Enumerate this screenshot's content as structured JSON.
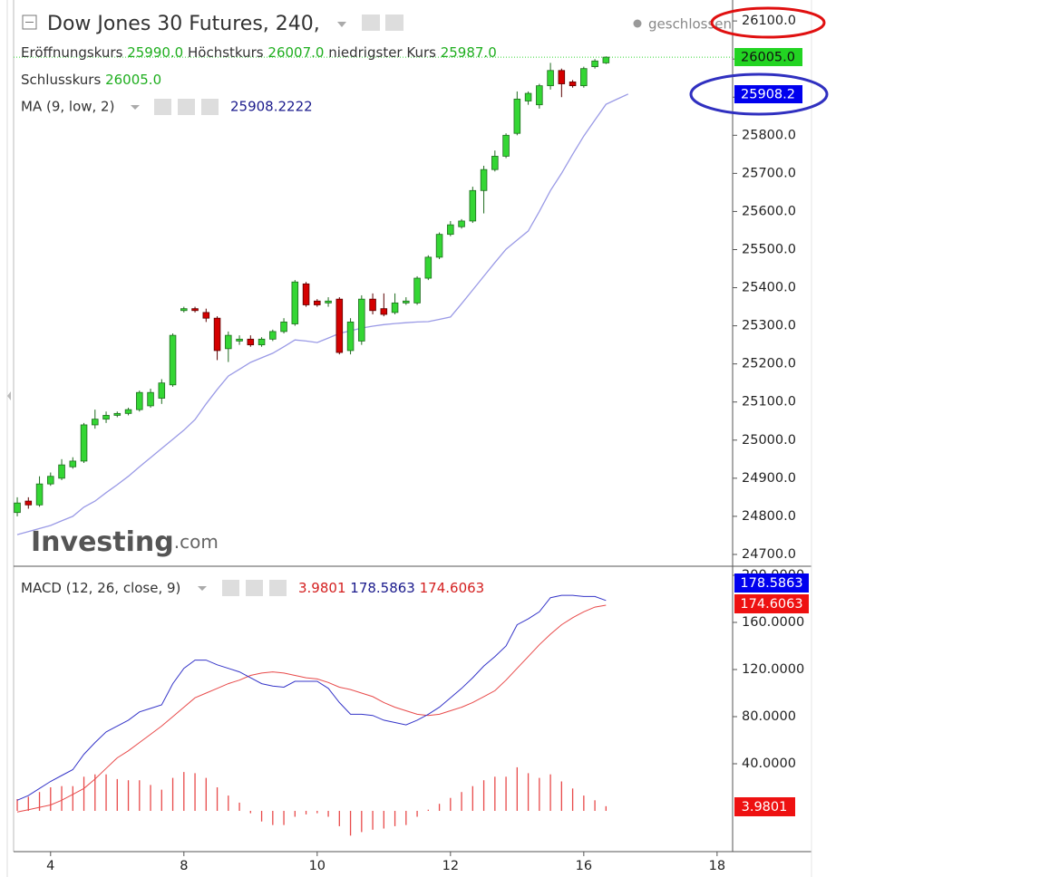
{
  "chart_data": [
    {
      "type": "candlestick",
      "title": "Dow Jones 30 Futures, 240,",
      "status": "geschlossen",
      "info": {
        "open_label": "Eröffnungskurs",
        "open": "25990.0",
        "high_label": "Höchstkurs",
        "high": "26007.0",
        "low_label": "niedrigster Kurs",
        "low": "25987.0",
        "close_label": "Schlusskurs",
        "close": "26005.0"
      },
      "open": [
        24810,
        24840,
        24830,
        24885,
        24900,
        24930,
        24945,
        25040,
        25055,
        25065,
        25070,
        25080,
        25090,
        25110,
        25145,
        25340,
        25345,
        25335,
        25320,
        25240,
        25260,
        25265,
        25250,
        25265,
        25285,
        25305,
        25410,
        25365,
        25360,
        25370,
        25235,
        25260,
        25370,
        25345,
        25335,
        25360,
        25360,
        25425,
        25480,
        25540,
        25560,
        25575,
        25655,
        25710,
        25745,
        25805,
        25890,
        25880,
        25930,
        25970,
        25940,
        25930,
        25980,
        25990
      ],
      "high": [
        24850,
        24850,
        24905,
        24915,
        24950,
        24955,
        25045,
        25080,
        25075,
        25075,
        25085,
        25130,
        25135,
        25160,
        25280,
        25350,
        25350,
        25345,
        25325,
        25285,
        25275,
        25275,
        25270,
        25290,
        25320,
        25420,
        25415,
        25370,
        25375,
        25375,
        25320,
        25380,
        25385,
        25385,
        25385,
        25375,
        25430,
        25485,
        25545,
        25575,
        25580,
        25665,
        25720,
        25760,
        25805,
        25915,
        25915,
        25935,
        25990,
        25975,
        25945,
        25980,
        26000,
        26007
      ],
      "low": [
        24800,
        24820,
        24825,
        24880,
        24895,
        24925,
        24940,
        25030,
        25045,
        25060,
        25065,
        25075,
        25085,
        25095,
        25140,
        25335,
        25335,
        25310,
        25210,
        25205,
        25250,
        25245,
        25245,
        25260,
        25280,
        25300,
        25350,
        25350,
        25350,
        25225,
        25225,
        25250,
        25330,
        25325,
        25330,
        25355,
        25355,
        25420,
        25475,
        25535,
        25555,
        25570,
        25595,
        25705,
        25740,
        25800,
        25880,
        25870,
        25920,
        25900,
        25925,
        25925,
        25975,
        25987
      ],
      "close": [
        24835,
        24830,
        24885,
        24905,
        24935,
        24945,
        25040,
        25055,
        25065,
        25070,
        25080,
        25125,
        25125,
        25150,
        25275,
        25345,
        25340,
        25320,
        25235,
        25275,
        25265,
        25250,
        25265,
        25285,
        25310,
        25415,
        25355,
        25355,
        25365,
        25230,
        25310,
        25370,
        25340,
        25330,
        25360,
        25365,
        25425,
        25480,
        25540,
        25565,
        25575,
        25655,
        25710,
        25745,
        25800,
        25895,
        25910,
        25930,
        25970,
        25935,
        25930,
        25975,
        25995,
        26005
      ],
      "up_color": "#34d634",
      "down_color": "#d40000",
      "up_edge": "#1e6b1e",
      "down_edge": "#5a0000",
      "ma": {
        "name": "MA (9, low, 2)",
        "value_label": "25908.2222",
        "color": "#9a9ae6",
        "values": [
          24752,
          24760,
          24768,
          24776,
          24788,
          24800,
          24824,
          24840,
          24862,
          24883,
          24905,
          24930,
          24954,
          24978,
          25002,
          25026,
          25054,
          25095,
          25133,
          25168,
          25186,
          25204,
          25216,
          25228,
          25245,
          25263,
          25260,
          25256,
          25268,
          25280,
          25287,
          25294,
          25299,
          25303,
          25306,
          25308,
          25310,
          25311,
          25317,
          25323,
          25358,
          25394,
          25430,
          25466,
          25501,
          25525,
          25549,
          25600,
          25655,
          25700,
          25750,
          25798,
          25840,
          25881,
          25895,
          25908.2222
        ]
      },
      "axis_badges": [
        "26005.0",
        "25908.2"
      ],
      "watermark": {
        "brand": "Investing",
        "suffix": ".com"
      },
      "xlim": [
        -0.33,
        64.4
      ],
      "ylim": [
        24669,
        26155
      ],
      "yticks": [
        {
          "value": 24700,
          "label": "24700.0"
        },
        {
          "value": 24800,
          "label": "24800.0"
        },
        {
          "value": 24900,
          "label": "24900.0"
        },
        {
          "value": 25000,
          "label": "25000.0"
        },
        {
          "value": 25100,
          "label": "25100.0"
        },
        {
          "value": 25200,
          "label": "25200.0"
        },
        {
          "value": 25300,
          "label": "25300.0"
        },
        {
          "value": 25400,
          "label": "25400.0"
        },
        {
          "value": 25500,
          "label": "25500.0"
        },
        {
          "value": 25600,
          "label": "25600.0"
        },
        {
          "value": 25700,
          "label": "25700.0"
        },
        {
          "value": 25800,
          "label": "25800.0"
        },
        {
          "value": 25900,
          "label": "25900.0"
        },
        {
          "value": 26000,
          "label": "26000.0"
        },
        {
          "value": 26100,
          "label": "26100.0"
        }
      ]
    },
    {
      "type": "macd",
      "title": "MACD (12, 26, close, 9)",
      "legend_values": [
        "3.9801",
        "178.5863",
        "174.6063"
      ],
      "axis_badges": [
        "178.5863",
        "174.6063",
        "3.9801"
      ],
      "histogram": {
        "color": "#e84a4a",
        "values": [
          10,
          12,
          16,
          20,
          21,
          21,
          29,
          31,
          31,
          27,
          26,
          26,
          22,
          18,
          28,
          33,
          32,
          28,
          20,
          13,
          7,
          -2,
          -9,
          -12,
          -12,
          -5,
          -3,
          -2,
          -5,
          -13,
          -21,
          -18,
          -16,
          -15,
          -13,
          -12,
          -5,
          1,
          6,
          11,
          16,
          21,
          26,
          29,
          29,
          37,
          32,
          28,
          31,
          25,
          19,
          13,
          9,
          3.9801
        ]
      },
      "macd": {
        "color": "#3434c8",
        "values": [
          9,
          13,
          19,
          25,
          30,
          35,
          48,
          58,
          67,
          72,
          77,
          84,
          87,
          90,
          108,
          121,
          128,
          128,
          124,
          121,
          118,
          113,
          108,
          106,
          105,
          110,
          110,
          110,
          104,
          92,
          82,
          82,
          81,
          77,
          75,
          73,
          77,
          82,
          88,
          96,
          104,
          113,
          123,
          131,
          140,
          158,
          163,
          169,
          181,
          183,
          183,
          182,
          182,
          178.5863
        ]
      },
      "signal": {
        "color": "#e84a4a",
        "values": [
          -1,
          1,
          3,
          5,
          9,
          14,
          19,
          27,
          36,
          45,
          51,
          58,
          65,
          72,
          80,
          88,
          96,
          100,
          104,
          108,
          111,
          115,
          117,
          118,
          117,
          115,
          113,
          112,
          109,
          105,
          103,
          100,
          97,
          92,
          88,
          85,
          82,
          81,
          82,
          85,
          88,
          92,
          97,
          102,
          111,
          121,
          131,
          141,
          150,
          158,
          164,
          169,
          173,
          174.6063
        ]
      },
      "xlim": [
        -0.33,
        64.4
      ],
      "ylim": [
        -34.6,
        206.9
      ],
      "xticks": [
        {
          "value": 3,
          "label": "4"
        },
        {
          "value": 15,
          "label": "8"
        },
        {
          "value": 27,
          "label": "10"
        },
        {
          "value": 39,
          "label": "12"
        },
        {
          "value": 51,
          "label": "16"
        },
        {
          "value": 63,
          "label": "18"
        }
      ],
      "yticks": [
        {
          "value": 40,
          "label": "40.0000"
        },
        {
          "value": 80,
          "label": "80.0000"
        },
        {
          "value": 120,
          "label": "120.0000"
        },
        {
          "value": 160,
          "label": "160.0000"
        },
        {
          "value": 200,
          "label": "200.0000"
        }
      ]
    }
  ]
}
